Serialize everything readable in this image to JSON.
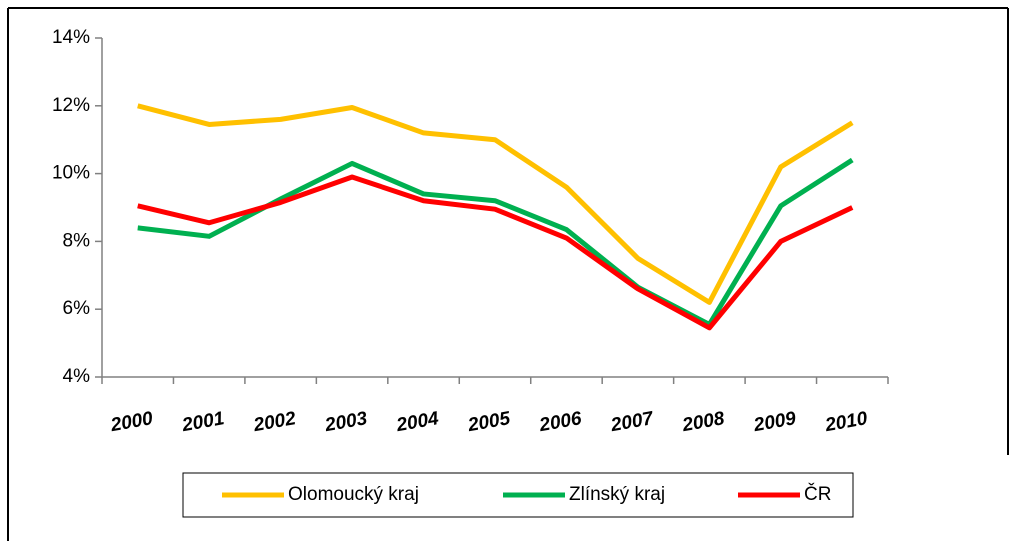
{
  "chart_data": {
    "type": "line",
    "categories": [
      "2000",
      "2001",
      "2002",
      "2003",
      "2004",
      "2005",
      "2006",
      "2007",
      "2008",
      "2009",
      "2010"
    ],
    "series": [
      {
        "name": "Olomoucký kraj",
        "color": "#ffc000",
        "values": [
          12.0,
          11.45,
          11.6,
          11.95,
          11.2,
          11.0,
          9.6,
          7.5,
          6.2,
          10.2,
          11.5
        ]
      },
      {
        "name": "Zlínský kraj",
        "color": "#00b050",
        "values": [
          8.4,
          8.15,
          9.25,
          10.3,
          9.4,
          9.2,
          8.35,
          6.65,
          5.55,
          9.05,
          10.4
        ]
      },
      {
        "name": "ČR",
        "color": "#ff0000",
        "values": [
          9.05,
          8.55,
          9.15,
          9.9,
          9.2,
          8.95,
          8.1,
          6.6,
          5.45,
          8.0,
          9.0
        ]
      }
    ],
    "ylim": [
      4,
      14
    ],
    "yticks": [
      {
        "value": 4,
        "label": "4%"
      },
      {
        "value": 6,
        "label": "6%"
      },
      {
        "value": 8,
        "label": "8%"
      },
      {
        "value": 10,
        "label": "10%"
      },
      {
        "value": 12,
        "label": "12%"
      },
      {
        "value": 14,
        "label": "14%"
      }
    ],
    "grid": false,
    "legend": "bottom"
  }
}
